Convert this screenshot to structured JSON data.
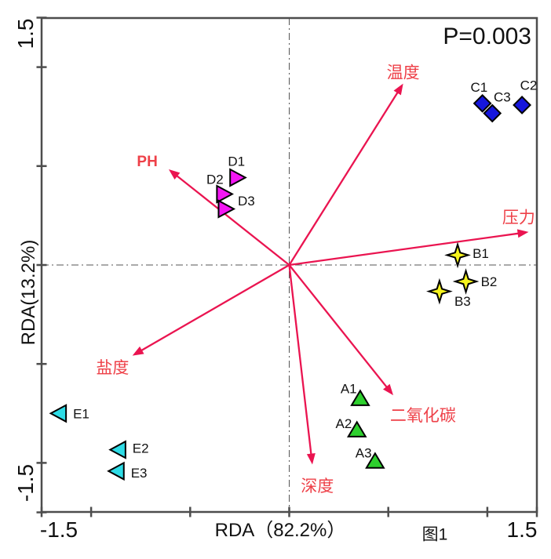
{
  "figure": {
    "p_value_label": "P=0.003",
    "caption": "图1"
  },
  "axes": {
    "x": {
      "label": "RDA（82.2%）",
      "min_label": "-1.5",
      "max_label": "1.5"
    },
    "y": {
      "label": "RDA(13.2%)",
      "min_label": "-1.5",
      "max_label": "1.5"
    }
  },
  "colors": {
    "arrow": "#ea1450",
    "env_label": "#ee4048",
    "frame": "#4d4d4d",
    "dash_line": "#555555",
    "marker_outline": "#000000",
    "point_label": "#111111",
    "group_A": "#2ed02e",
    "group_B": "#f5f31d",
    "group_C": "#1616dd",
    "group_D": "#f316f3",
    "group_E": "#2edce6"
  },
  "chart_data": {
    "type": "scatter",
    "subtype": "RDA ordination biplot",
    "annotation": "P=0.003",
    "caption": "图1",
    "xlabel": "RDA（82.2%）",
    "ylabel": "RDA(13.2%)",
    "xlim": [
      -1.5,
      1.5
    ],
    "ylim": [
      -1.5,
      1.5
    ],
    "x_ticks": [
      -1.5,
      -1.2,
      -0.6,
      0,
      0.6,
      1.2,
      1.5
    ],
    "y_ticks": [
      -1.5,
      -1.2,
      -0.6,
      0,
      0.6,
      1.2,
      1.5
    ],
    "grid": "dash-dot crosshair through origin",
    "legend": "none",
    "env_arrows": [
      {
        "key": "temperature",
        "name": "温度",
        "x": 0.69,
        "y": 1.1,
        "label_x": 0.69,
        "label_y": 1.17,
        "bold": false
      },
      {
        "key": "pressure",
        "name": "压力",
        "x": 1.45,
        "y": 0.2,
        "label_x": 1.39,
        "label_y": 0.29,
        "bold": false
      },
      {
        "key": "ph",
        "name": "PH",
        "x": -0.73,
        "y": 0.58,
        "label_x": -0.86,
        "label_y": 0.63,
        "bold": true
      },
      {
        "key": "salinity",
        "name": "盐度",
        "x": -0.95,
        "y": -0.55,
        "label_x": -1.07,
        "label_y": -0.62,
        "bold": false
      },
      {
        "key": "depth",
        "name": "深度",
        "x": 0.14,
        "y": -1.21,
        "label_x": 0.17,
        "label_y": -1.34,
        "bold": false
      },
      {
        "key": "co2",
        "name": "二氧化碳",
        "x": 0.63,
        "y": -0.79,
        "label_x": 0.81,
        "label_y": -0.91,
        "bold": false
      }
    ],
    "groups": [
      {
        "name": "A",
        "marker": "triangle-up",
        "color_key": "group_A",
        "points": [
          {
            "label": "A1",
            "x": 0.43,
            "y": -0.81,
            "lx": 0.36,
            "ly": -0.75
          },
          {
            "label": "A2",
            "x": 0.41,
            "y": -1.0,
            "lx": 0.33,
            "ly": -0.96
          },
          {
            "label": "A3",
            "x": 0.52,
            "y": -1.19,
            "lx": 0.45,
            "ly": -1.14
          }
        ]
      },
      {
        "name": "B",
        "marker": "star4",
        "color_key": "group_B",
        "points": [
          {
            "label": "B1",
            "x": 1.02,
            "y": 0.06,
            "lx": 1.16,
            "ly": 0.07
          },
          {
            "label": "B2",
            "x": 1.07,
            "y": -0.1,
            "lx": 1.21,
            "ly": -0.1
          },
          {
            "label": "B3",
            "x": 0.91,
            "y": -0.16,
            "lx": 1.05,
            "ly": -0.22
          }
        ]
      },
      {
        "name": "C",
        "marker": "diamond",
        "color_key": "group_C",
        "points": [
          {
            "label": "C1",
            "x": 1.17,
            "y": 0.98,
            "lx": 1.15,
            "ly": 1.08
          },
          {
            "label": "C3",
            "x": 1.23,
            "y": 0.92,
            "lx": 1.29,
            "ly": 1.02
          },
          {
            "label": "C2",
            "x": 1.41,
            "y": 0.97,
            "lx": 1.45,
            "ly": 1.09
          }
        ]
      },
      {
        "name": "D",
        "marker": "triangle-right",
        "color_key": "group_D",
        "points": [
          {
            "label": "D1",
            "x": -0.32,
            "y": 0.53,
            "lx": -0.32,
            "ly": 0.63
          },
          {
            "label": "D2",
            "x": -0.4,
            "y": 0.43,
            "lx": -0.45,
            "ly": 0.52
          },
          {
            "label": "D3",
            "x": -0.39,
            "y": 0.34,
            "lx": -0.26,
            "ly": 0.39
          }
        ]
      },
      {
        "name": "E",
        "marker": "triangle-left",
        "color_key": "group_E",
        "points": [
          {
            "label": "E1",
            "x": -1.39,
            "y": -0.9,
            "lx": -1.26,
            "ly": -0.9
          },
          {
            "label": "E2",
            "x": -1.03,
            "y": -1.12,
            "lx": -0.9,
            "ly": -1.11
          },
          {
            "label": "E3",
            "x": -1.04,
            "y": -1.25,
            "lx": -0.91,
            "ly": -1.26
          }
        ]
      }
    ]
  }
}
